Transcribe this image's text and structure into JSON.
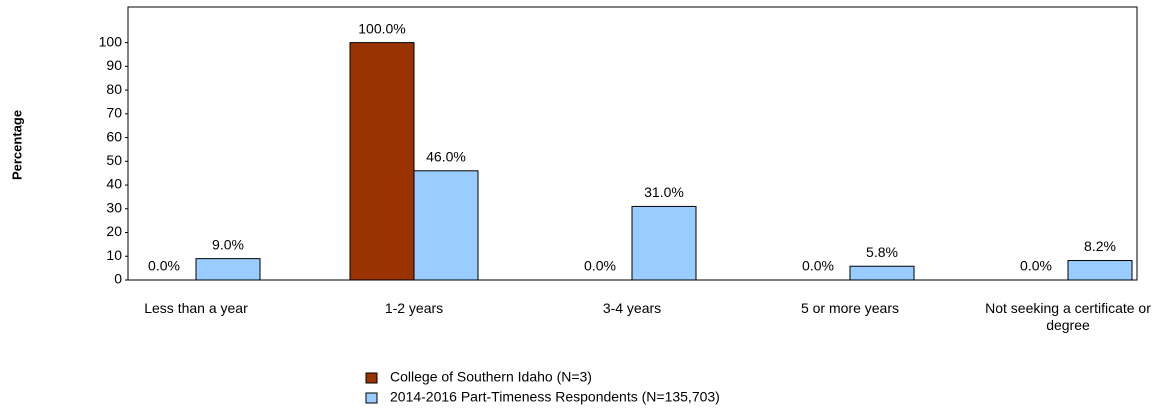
{
  "chart_data": {
    "type": "bar",
    "y_label": "Percentage",
    "categories": [
      "Less than a year",
      "1-2 years",
      "3-4 years",
      "5 or more years",
      "Not seeking a certificate or degree"
    ],
    "series": [
      {
        "name": "College of Southern Idaho (N=3)",
        "color": "#993300",
        "values": [
          0,
          100,
          0,
          0,
          0
        ],
        "value_labels": [
          "0.0%",
          "100.0%",
          "0.0%",
          "0.0%",
          "0.0%"
        ]
      },
      {
        "name": "2014-2016 Part-Timeness Respondents (N=135,703)",
        "color": "#99ccff",
        "values": [
          9,
          46,
          31,
          5.8,
          8.2
        ],
        "value_labels": [
          "9.0%",
          "46.0%",
          "31.0%",
          "5.8%",
          "8.2%"
        ]
      }
    ],
    "ylim": [
      0,
      115
    ],
    "yticks": [
      0,
      10,
      20,
      30,
      40,
      50,
      60,
      70,
      80,
      90,
      100
    ],
    "grid": false
  }
}
